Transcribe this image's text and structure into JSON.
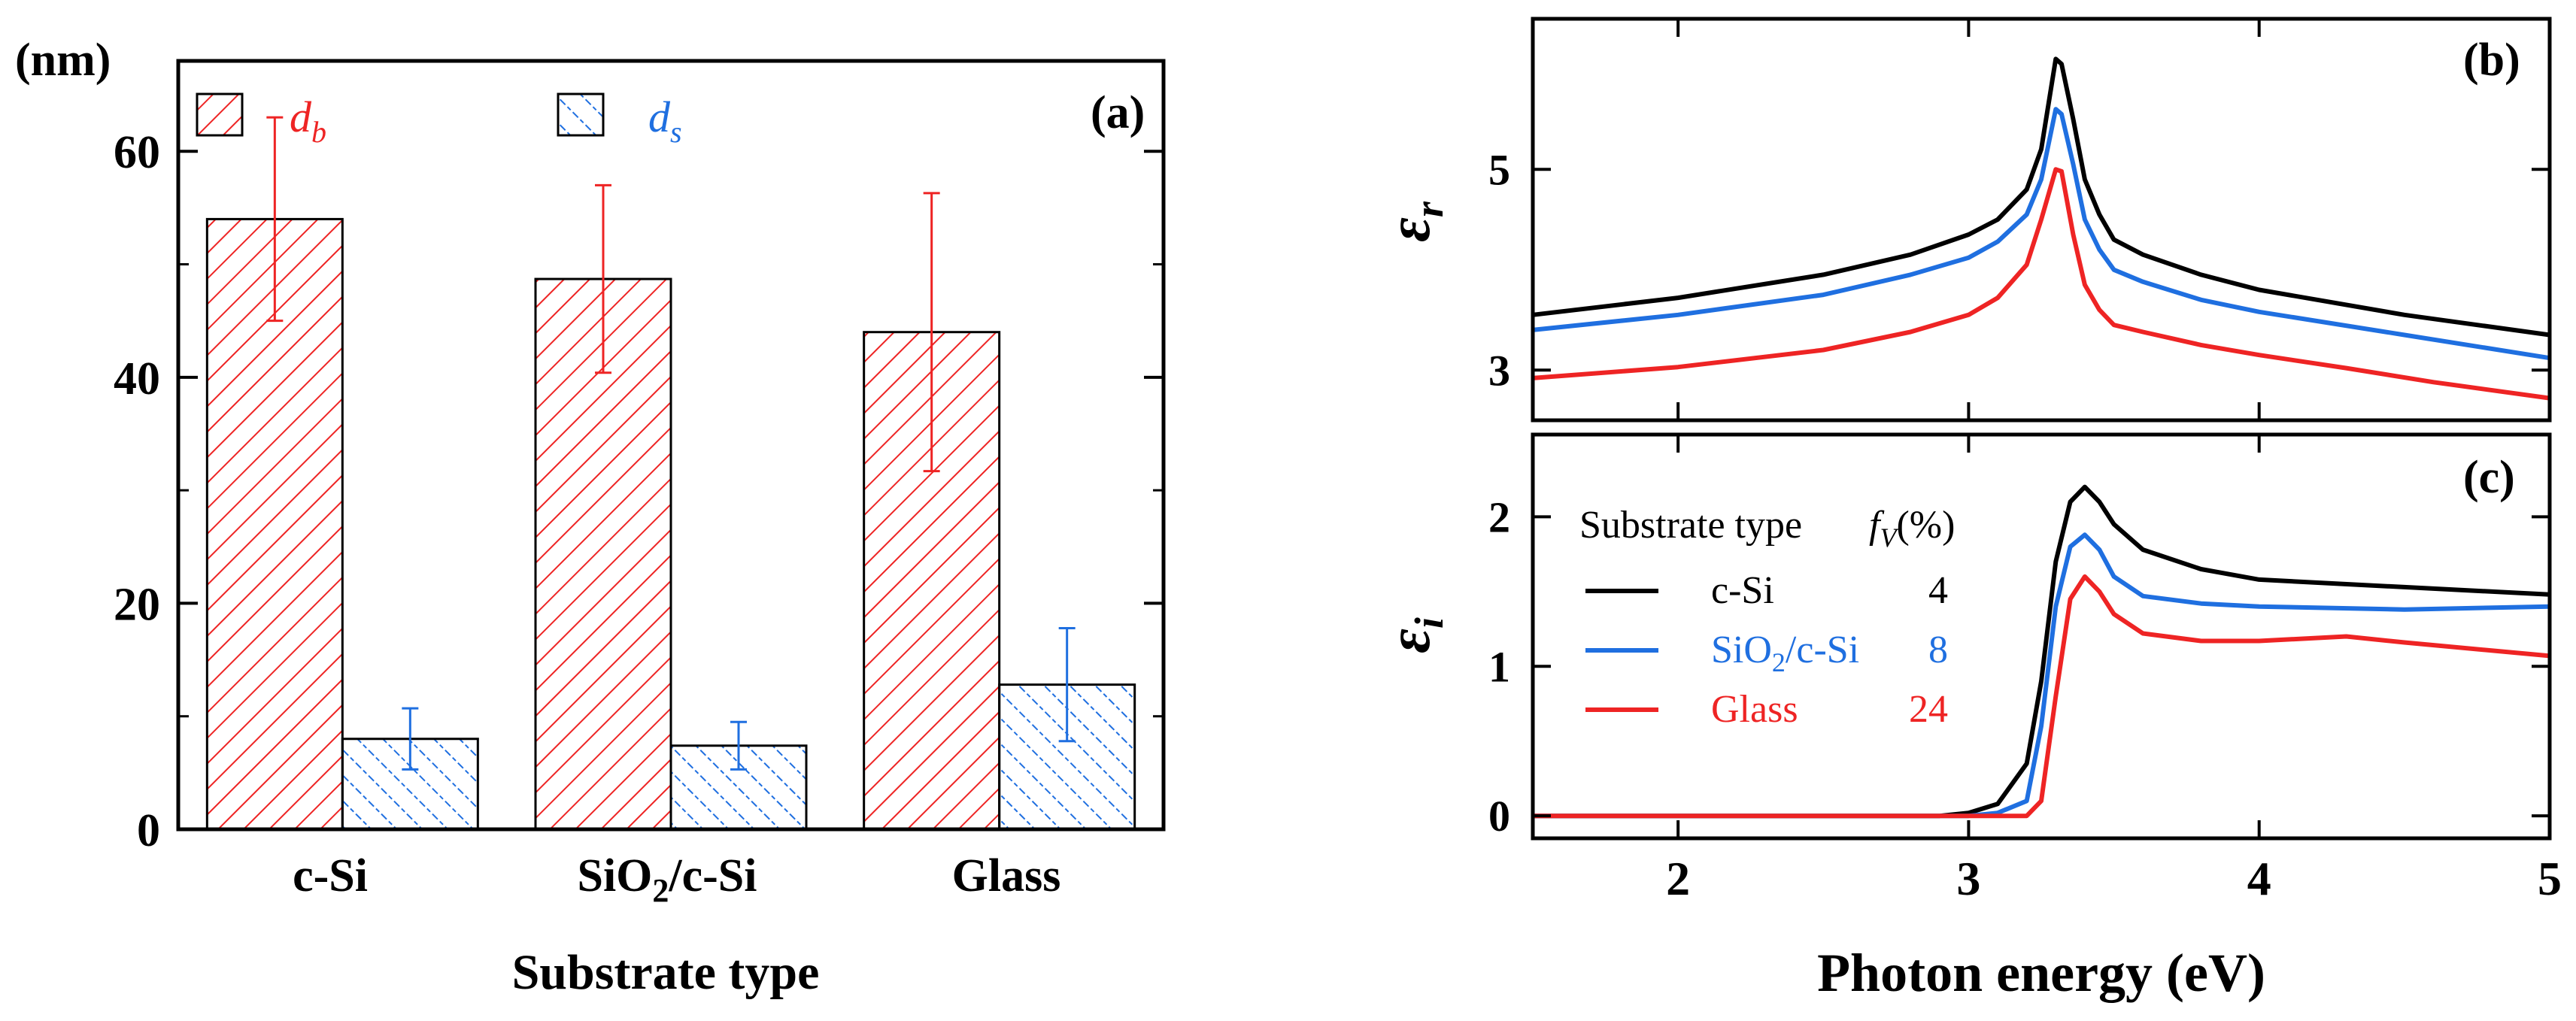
{
  "chart_data": [
    {
      "panel": "(a)",
      "type": "bar",
      "unit_label": "(nm)",
      "xlabel": "Substrate type",
      "categories": [
        {
          "main": "c-Si",
          "sub": "",
          "post": ""
        },
        {
          "main": "SiO",
          "sub": "2",
          "post": "/c-Si"
        },
        {
          "main": "Glass",
          "sub": "",
          "post": ""
        }
      ],
      "series": [
        {
          "name": "d",
          "sub": "b",
          "color": "#ee2424",
          "values": [
            54,
            48.7,
            44
          ],
          "errors": [
            9,
            8.3,
            12.3
          ]
        },
        {
          "name": "d",
          "sub": "s",
          "color": "#1f6fe0",
          "values": [
            8,
            7.4,
            12.8
          ],
          "errors": [
            2.7,
            2.1,
            5
          ]
        }
      ],
      "ylim": [
        0,
        68
      ],
      "yticks": [
        0,
        20,
        40,
        60
      ]
    },
    {
      "panel": "(b)",
      "type": "line",
      "ylabel": "ε",
      "ylabel_sub": "r",
      "xlim": [
        1.5,
        5
      ],
      "ylim": [
        2.5,
        6.5
      ],
      "yticks": [
        3,
        5
      ],
      "series": [
        {
          "name": "c-Si",
          "color": "#000000",
          "x": [
            1.5,
            2.0,
            2.5,
            2.8,
            3.0,
            3.1,
            3.2,
            3.25,
            3.3,
            3.32,
            3.36,
            3.4,
            3.45,
            3.5,
            3.6,
            3.8,
            4.0,
            4.5,
            5.0
          ],
          "y": [
            3.55,
            3.72,
            3.95,
            4.15,
            4.35,
            4.5,
            4.8,
            5.2,
            6.1,
            6.05,
            5.5,
            4.9,
            4.55,
            4.3,
            4.15,
            3.95,
            3.8,
            3.55,
            3.35
          ]
        },
        {
          "name": "SiO2/c-Si",
          "color": "#1f6fe0",
          "x": [
            1.5,
            2.0,
            2.5,
            2.8,
            3.0,
            3.1,
            3.2,
            3.25,
            3.3,
            3.32,
            3.36,
            3.4,
            3.45,
            3.5,
            3.6,
            3.8,
            4.0,
            4.5,
            5.0
          ],
          "y": [
            3.4,
            3.55,
            3.75,
            3.95,
            4.12,
            4.28,
            4.55,
            4.9,
            5.6,
            5.55,
            5.05,
            4.5,
            4.2,
            4.0,
            3.88,
            3.7,
            3.58,
            3.35,
            3.12
          ]
        },
        {
          "name": "Glass",
          "color": "#ee2424",
          "x": [
            1.5,
            2.0,
            2.5,
            2.8,
            3.0,
            3.1,
            3.2,
            3.25,
            3.3,
            3.32,
            3.36,
            3.4,
            3.45,
            3.5,
            3.6,
            3.8,
            4.0,
            4.3,
            4.6,
            5.0
          ],
          "y": [
            2.92,
            3.03,
            3.2,
            3.38,
            3.55,
            3.72,
            4.05,
            4.5,
            5.0,
            4.98,
            4.35,
            3.85,
            3.6,
            3.45,
            3.38,
            3.25,
            3.15,
            3.02,
            2.88,
            2.72
          ]
        }
      ]
    },
    {
      "panel": "(c)",
      "type": "line",
      "ylabel": "ε",
      "ylabel_sub": "i",
      "xlabel": "Photon energy (eV)",
      "xlim": [
        1.5,
        5
      ],
      "ylim": [
        -0.15,
        2.55
      ],
      "xticks": [
        2,
        3,
        4,
        5
      ],
      "yticks": [
        0,
        1,
        2
      ],
      "legend_header": {
        "left": "Substrate type",
        "fv": "f",
        "fv_sub": "V",
        "fv_post": "(%)"
      },
      "series": [
        {
          "name": "c-Si",
          "name_main": "c-Si",
          "name_sub": "",
          "name_post": "",
          "fv": "4",
          "color": "#000000",
          "x": [
            1.5,
            2.9,
            3.0,
            3.1,
            3.2,
            3.25,
            3.3,
            3.35,
            3.4,
            3.45,
            3.5,
            3.6,
            3.8,
            4.0,
            4.5,
            5.0
          ],
          "y": [
            0,
            0,
            0.02,
            0.08,
            0.35,
            0.9,
            1.7,
            2.1,
            2.2,
            2.1,
            1.95,
            1.78,
            1.65,
            1.58,
            1.53,
            1.48
          ]
        },
        {
          "name": "SiO2/c-Si",
          "name_main": "SiO",
          "name_sub": "2",
          "name_post": "/c-Si",
          "fv": "8",
          "color": "#1f6fe0",
          "x": [
            1.5,
            3.0,
            3.1,
            3.2,
            3.25,
            3.3,
            3.35,
            3.4,
            3.45,
            3.5,
            3.6,
            3.8,
            4.0,
            4.5,
            5.0
          ],
          "y": [
            0,
            0,
            0.02,
            0.1,
            0.6,
            1.4,
            1.8,
            1.88,
            1.78,
            1.6,
            1.47,
            1.42,
            1.4,
            1.38,
            1.4
          ]
        },
        {
          "name": "Glass",
          "name_main": "Glass",
          "name_sub": "",
          "name_post": "",
          "fv": "24",
          "color": "#ee2424",
          "x": [
            1.5,
            3.2,
            3.25,
            3.3,
            3.35,
            3.4,
            3.45,
            3.5,
            3.6,
            3.8,
            4.0,
            4.3,
            4.5,
            5.0
          ],
          "y": [
            0,
            0,
            0.1,
            0.8,
            1.45,
            1.6,
            1.5,
            1.35,
            1.22,
            1.17,
            1.17,
            1.2,
            1.16,
            1.07
          ]
        }
      ]
    }
  ]
}
